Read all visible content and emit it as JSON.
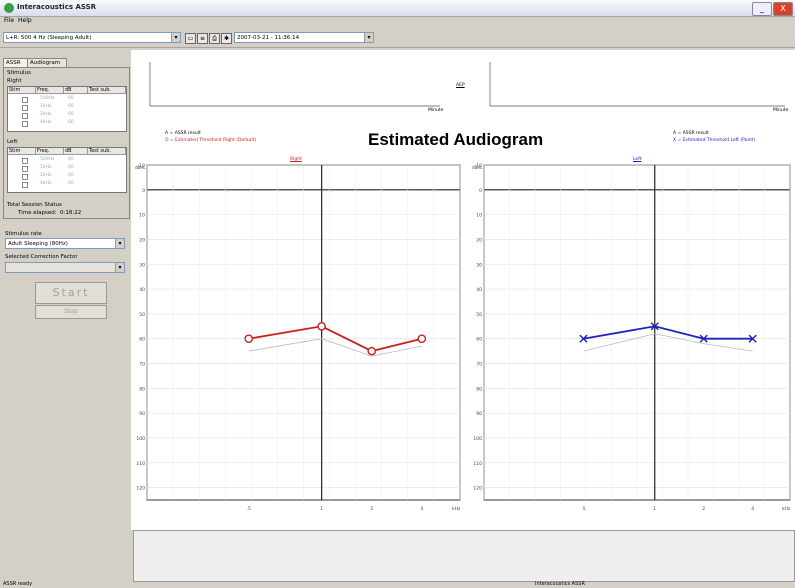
{
  "window": {
    "title": "Interacoustics ASSR",
    "buttons": [
      "_",
      "X"
    ]
  },
  "menu": {
    "items": [
      "File",
      "Help"
    ]
  },
  "toolbar": {
    "patient_combo": "L+R: 500 4 Hz (Sleeping Adult)",
    "session_combo": "2007-03-21 - 11:36:14"
  },
  "left_panel": {
    "tabs": [
      "ASSR",
      "Audiogram"
    ],
    "stimulus_label": "Stimulus",
    "right_label": "Right",
    "left_label": "Left",
    "table_headers": [
      "Stim",
      "Freq.",
      "dB",
      "Test sub."
    ],
    "right_rows": [
      {
        "freq": "500Hz",
        "db": "60"
      },
      {
        "freq": "1kHz",
        "db": "60"
      },
      {
        "freq": "2kHz",
        "db": "60"
      },
      {
        "freq": "4kHz",
        "db": "60"
      }
    ],
    "left_rows": [
      {
        "freq": "500Hz",
        "db": "60"
      },
      {
        "freq": "1kHz",
        "db": "60"
      },
      {
        "freq": "2kHz",
        "db": "60"
      },
      {
        "freq": "4kHz",
        "db": "60"
      }
    ],
    "total_session_status": "Total Session Status",
    "time_elapsed_label": "Time elapsed:",
    "time_elapsed_value": "0:18:22",
    "stimulus_rate_label": "Stimulus rate",
    "stimulus_rate_value": "Adult Sleeping (80Hz)",
    "correction_label": "Selected Correction Factor",
    "correction_value": "",
    "start_button": "Start",
    "stop_button": "Stop"
  },
  "main": {
    "title": "Estimated Audiogram",
    "top_center_label": "AEP",
    "top_axis_unit": "Minute",
    "right_legend": [
      "A = ASSR result",
      "O = Estimated Threshold Right (Default)"
    ],
    "left_legend": [
      "A = ASSR result",
      "X = Estimated Threshold Left (Point)"
    ],
    "right_panel_title": "Right",
    "left_panel_title": "Left",
    "y_unit": "dBHL",
    "x_unit": "kHz",
    "y_ticks": [
      "-10",
      "0",
      "10",
      "20",
      "30",
      "40",
      "50",
      "60",
      "70",
      "80",
      "90",
      "100",
      "110",
      "120"
    ],
    "x_ticks": [
      ".5",
      "1",
      "2",
      "4"
    ]
  },
  "chart_data": [
    {
      "type": "line",
      "title": "Right",
      "xlabel": "kHz",
      "ylabel": "dBHL",
      "categories": [
        ".5",
        "1",
        "2",
        "4"
      ],
      "ylim": [
        -10,
        125
      ],
      "y_inverted": true,
      "series": [
        {
          "values": [
            60,
            55,
            65,
            60
          ],
          "color": "#cc2020",
          "marker": "circle"
        },
        {
          "values": [
            65,
            60,
            67,
            63
          ],
          "color": "#bbbbbb",
          "marker": "none"
        }
      ],
      "grid": true
    },
    {
      "type": "line",
      "title": "Left",
      "xlabel": "kHz",
      "ylabel": "dBHL",
      "categories": [
        ".5",
        "1",
        "2",
        "4"
      ],
      "ylim": [
        -10,
        125
      ],
      "y_inverted": true,
      "series": [
        {
          "values": [
            60,
            55,
            60,
            60
          ],
          "color": "#2020bb",
          "marker": "x"
        },
        {
          "values": [
            65,
            58,
            62,
            65
          ],
          "color": "#bbbbbb",
          "marker": "none"
        }
      ],
      "grid": true
    }
  ],
  "status_bar": {
    "left": "ASSR ready",
    "right": "Interacoustics ASSR"
  }
}
